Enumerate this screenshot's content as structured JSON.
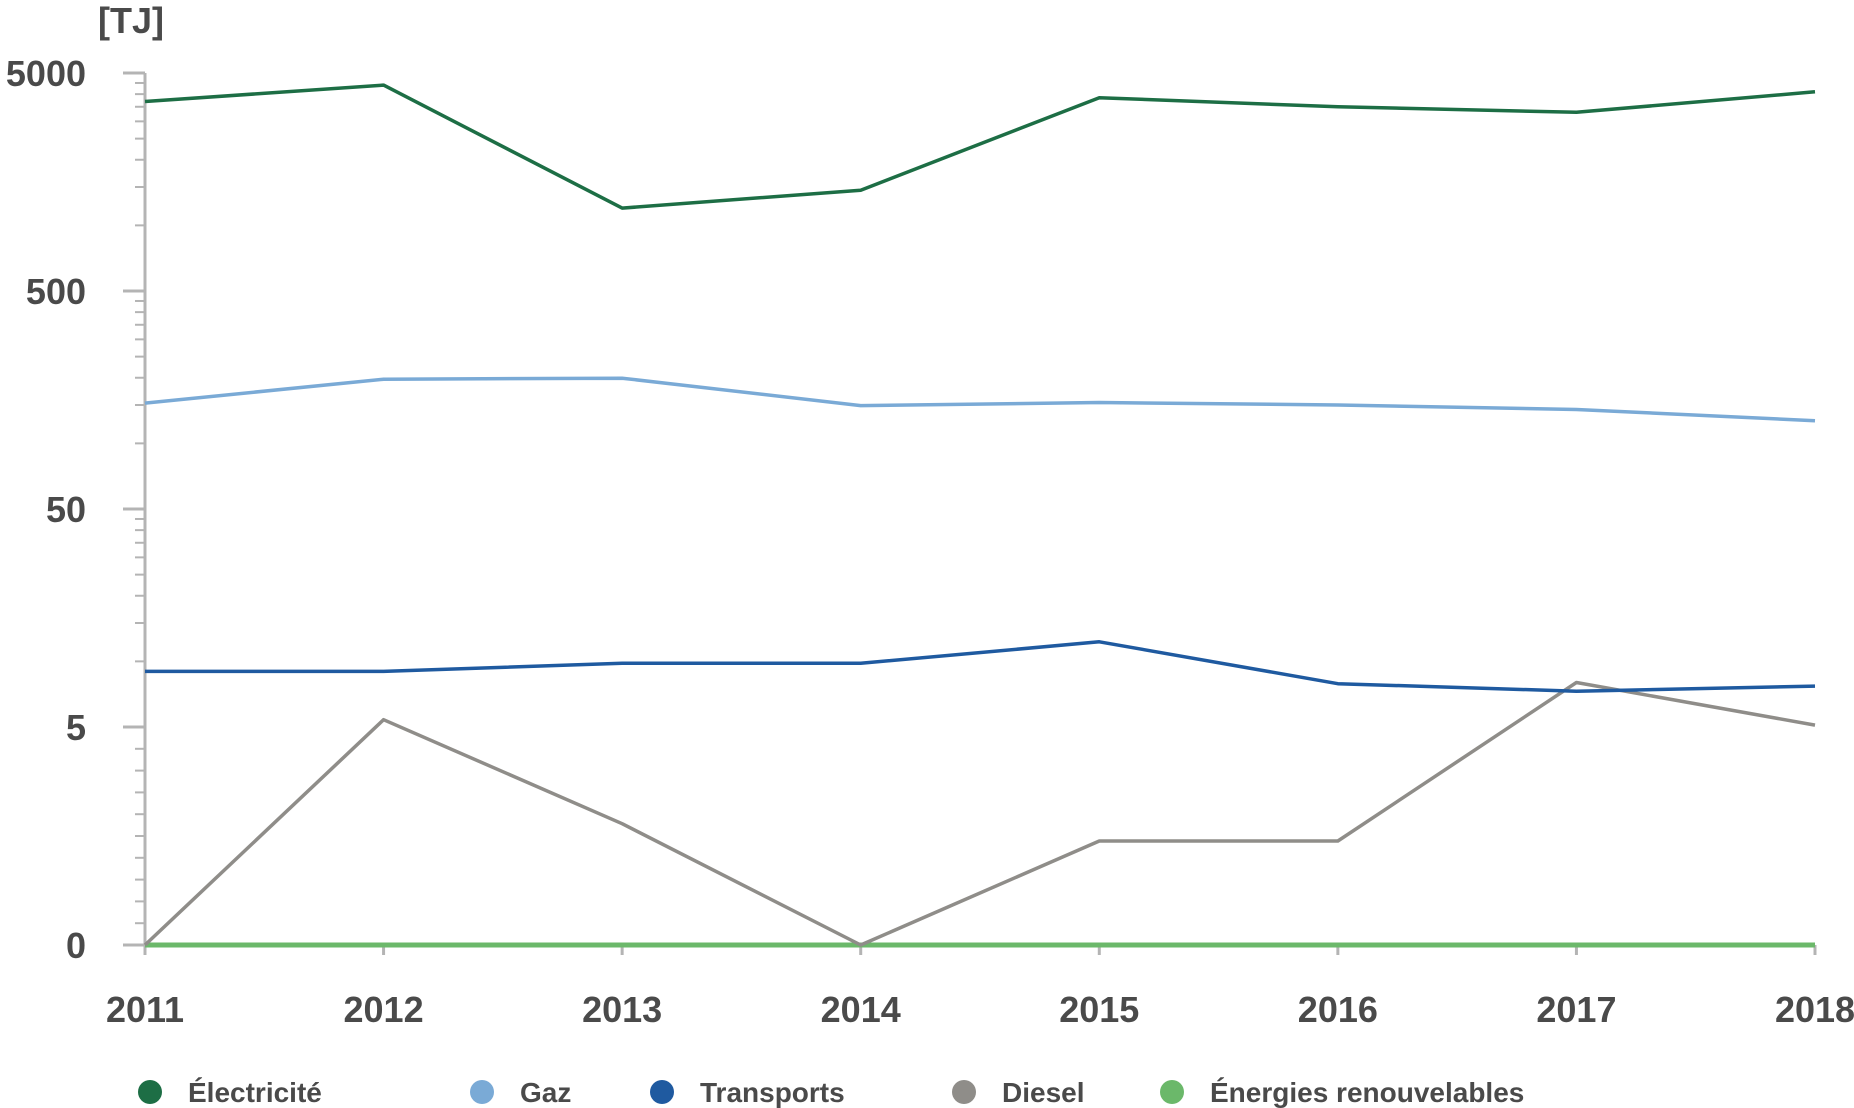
{
  "chart_data": {
    "type": "line",
    "unit_label": "[TJ]",
    "y_scale": "log (symlog, 0 at bottom)",
    "grid": false,
    "legend_position": "bottom",
    "x": [
      "2011",
      "2012",
      "2013",
      "2014",
      "2015",
      "2016",
      "2017",
      "2018"
    ],
    "y_ticks": [
      {
        "value": 0,
        "label": "0"
      },
      {
        "value": 5,
        "label": "5"
      },
      {
        "value": 50,
        "label": "50"
      },
      {
        "value": 500,
        "label": "500"
      },
      {
        "value": 5000,
        "label": "5000"
      }
    ],
    "ylim": [
      0,
      5000
    ],
    "series": [
      {
        "name": "Électricité",
        "color": "#1d6e45",
        "values": [
          3700,
          4400,
          1200,
          1450,
          3850,
          3500,
          3300,
          4100
        ]
      },
      {
        "name": "Gaz",
        "color": "#7aaad6",
        "values": [
          153,
          197,
          199,
          149,
          154,
          150,
          143,
          127
        ]
      },
      {
        "name": "Transports",
        "color": "#1f5aa0",
        "values": [
          9.0,
          9.0,
          9.8,
          9.8,
          12.3,
          7.9,
          7.3,
          7.7
        ]
      },
      {
        "name": "Diesel",
        "color": "#8f8d89",
        "values": [
          0,
          5.4,
          1.8,
          0.4,
          1.5,
          1.5,
          8.0,
          5.1
        ]
      },
      {
        "name": "Énergies renouvelables",
        "color": "#6bb86a",
        "values": [
          0,
          0,
          0,
          0.05,
          0,
          0.05,
          0.05,
          0.05
        ]
      }
    ]
  }
}
